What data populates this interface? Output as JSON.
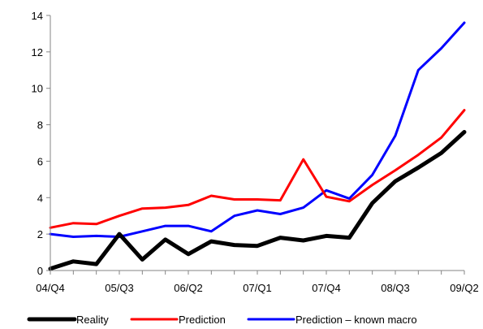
{
  "chart_data": {
    "type": "line",
    "title": "",
    "xlabel": "",
    "ylabel": "",
    "ylim": [
      0,
      14
    ],
    "yticks": [
      0,
      2,
      4,
      6,
      8,
      10,
      12,
      14
    ],
    "grid": false,
    "legend_position": "bottom",
    "x": [
      "04/Q4",
      "05/Q1",
      "05/Q2",
      "05/Q3",
      "05/Q4",
      "06/Q1",
      "06/Q2",
      "06/Q3",
      "06/Q4",
      "07/Q1",
      "07/Q2",
      "07/Q3",
      "07/Q4",
      "08/Q1",
      "08/Q2",
      "08/Q3",
      "08/Q4",
      "09/Q1",
      "09/Q2"
    ],
    "x_tick_labels": [
      {
        "index": 0,
        "label": "04/Q4"
      },
      {
        "index": 3,
        "label": "05/Q3"
      },
      {
        "index": 6,
        "label": "06/Q2"
      },
      {
        "index": 9,
        "label": "07/Q1"
      },
      {
        "index": 12,
        "label": "07/Q4"
      },
      {
        "index": 15,
        "label": "08/Q3"
      },
      {
        "index": 18,
        "label": "09/Q2"
      }
    ],
    "series": [
      {
        "name": "Reality",
        "color": "#000000",
        "values": [
          0.1,
          0.5,
          0.35,
          2.0,
          0.6,
          1.7,
          0.9,
          1.6,
          1.4,
          1.35,
          1.8,
          1.65,
          1.9,
          1.8,
          3.7,
          4.9,
          5.65,
          6.45,
          7.6
        ]
      },
      {
        "name": "Prediction",
        "color": "#ff0000",
        "values": [
          2.35,
          2.6,
          2.55,
          3.0,
          3.4,
          3.45,
          3.6,
          4.1,
          3.9,
          3.9,
          3.85,
          6.1,
          4.05,
          3.8,
          4.7,
          5.5,
          6.35,
          7.3,
          8.8
        ]
      },
      {
        "name": "Prediction – known macro",
        "color": "#0000ff",
        "values": [
          2.0,
          1.85,
          1.9,
          1.85,
          2.15,
          2.45,
          2.45,
          2.15,
          3.0,
          3.3,
          3.1,
          3.45,
          4.4,
          3.95,
          5.25,
          7.4,
          11.0,
          12.2,
          13.6
        ]
      }
    ]
  }
}
